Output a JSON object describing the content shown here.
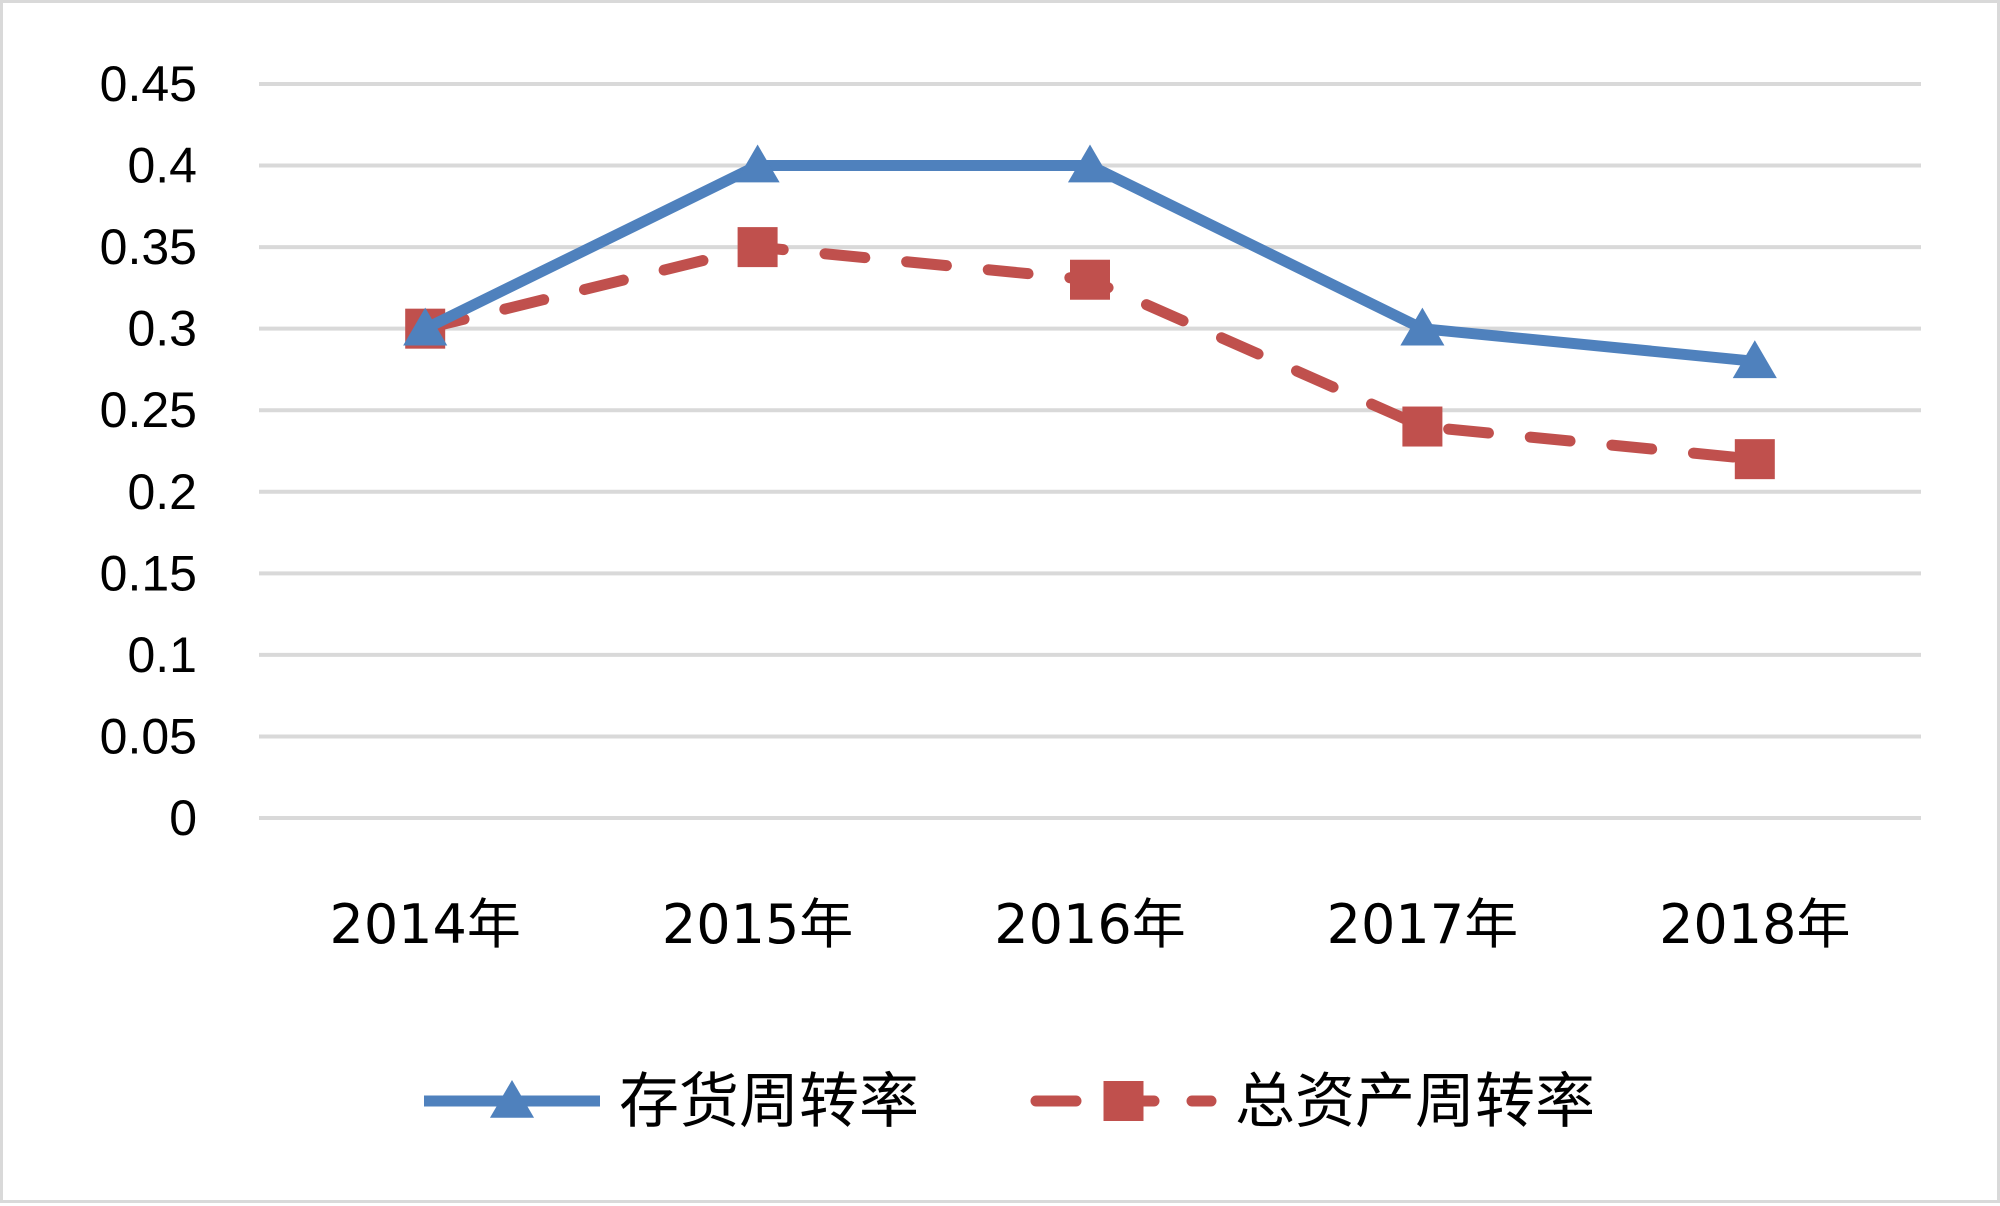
{
  "chart_data": {
    "type": "line",
    "categories": [
      "2014年",
      "2015年",
      "2016年",
      "2017年",
      "2018年"
    ],
    "series": [
      {
        "name": "存货周转率",
        "values": [
          0.3,
          0.4,
          0.4,
          0.3,
          0.28
        ],
        "color": "#4f81bd",
        "marker": "triangle",
        "line_style": "solid"
      },
      {
        "name": "总资产周转率",
        "values": [
          0.3,
          0.35,
          0.33,
          0.24,
          0.22
        ],
        "color": "#c0504d",
        "marker": "square",
        "line_style": "dashed"
      }
    ],
    "yticks": [
      "0",
      "0.05",
      "0.1",
      "0.15",
      "0.2",
      "0.25",
      "0.3",
      "0.35",
      "0.4",
      "0.45"
    ],
    "ylim": [
      0,
      0.45
    ],
    "grid": true,
    "legend_position": "bottom",
    "gridline_color": "#d9d9d9"
  }
}
